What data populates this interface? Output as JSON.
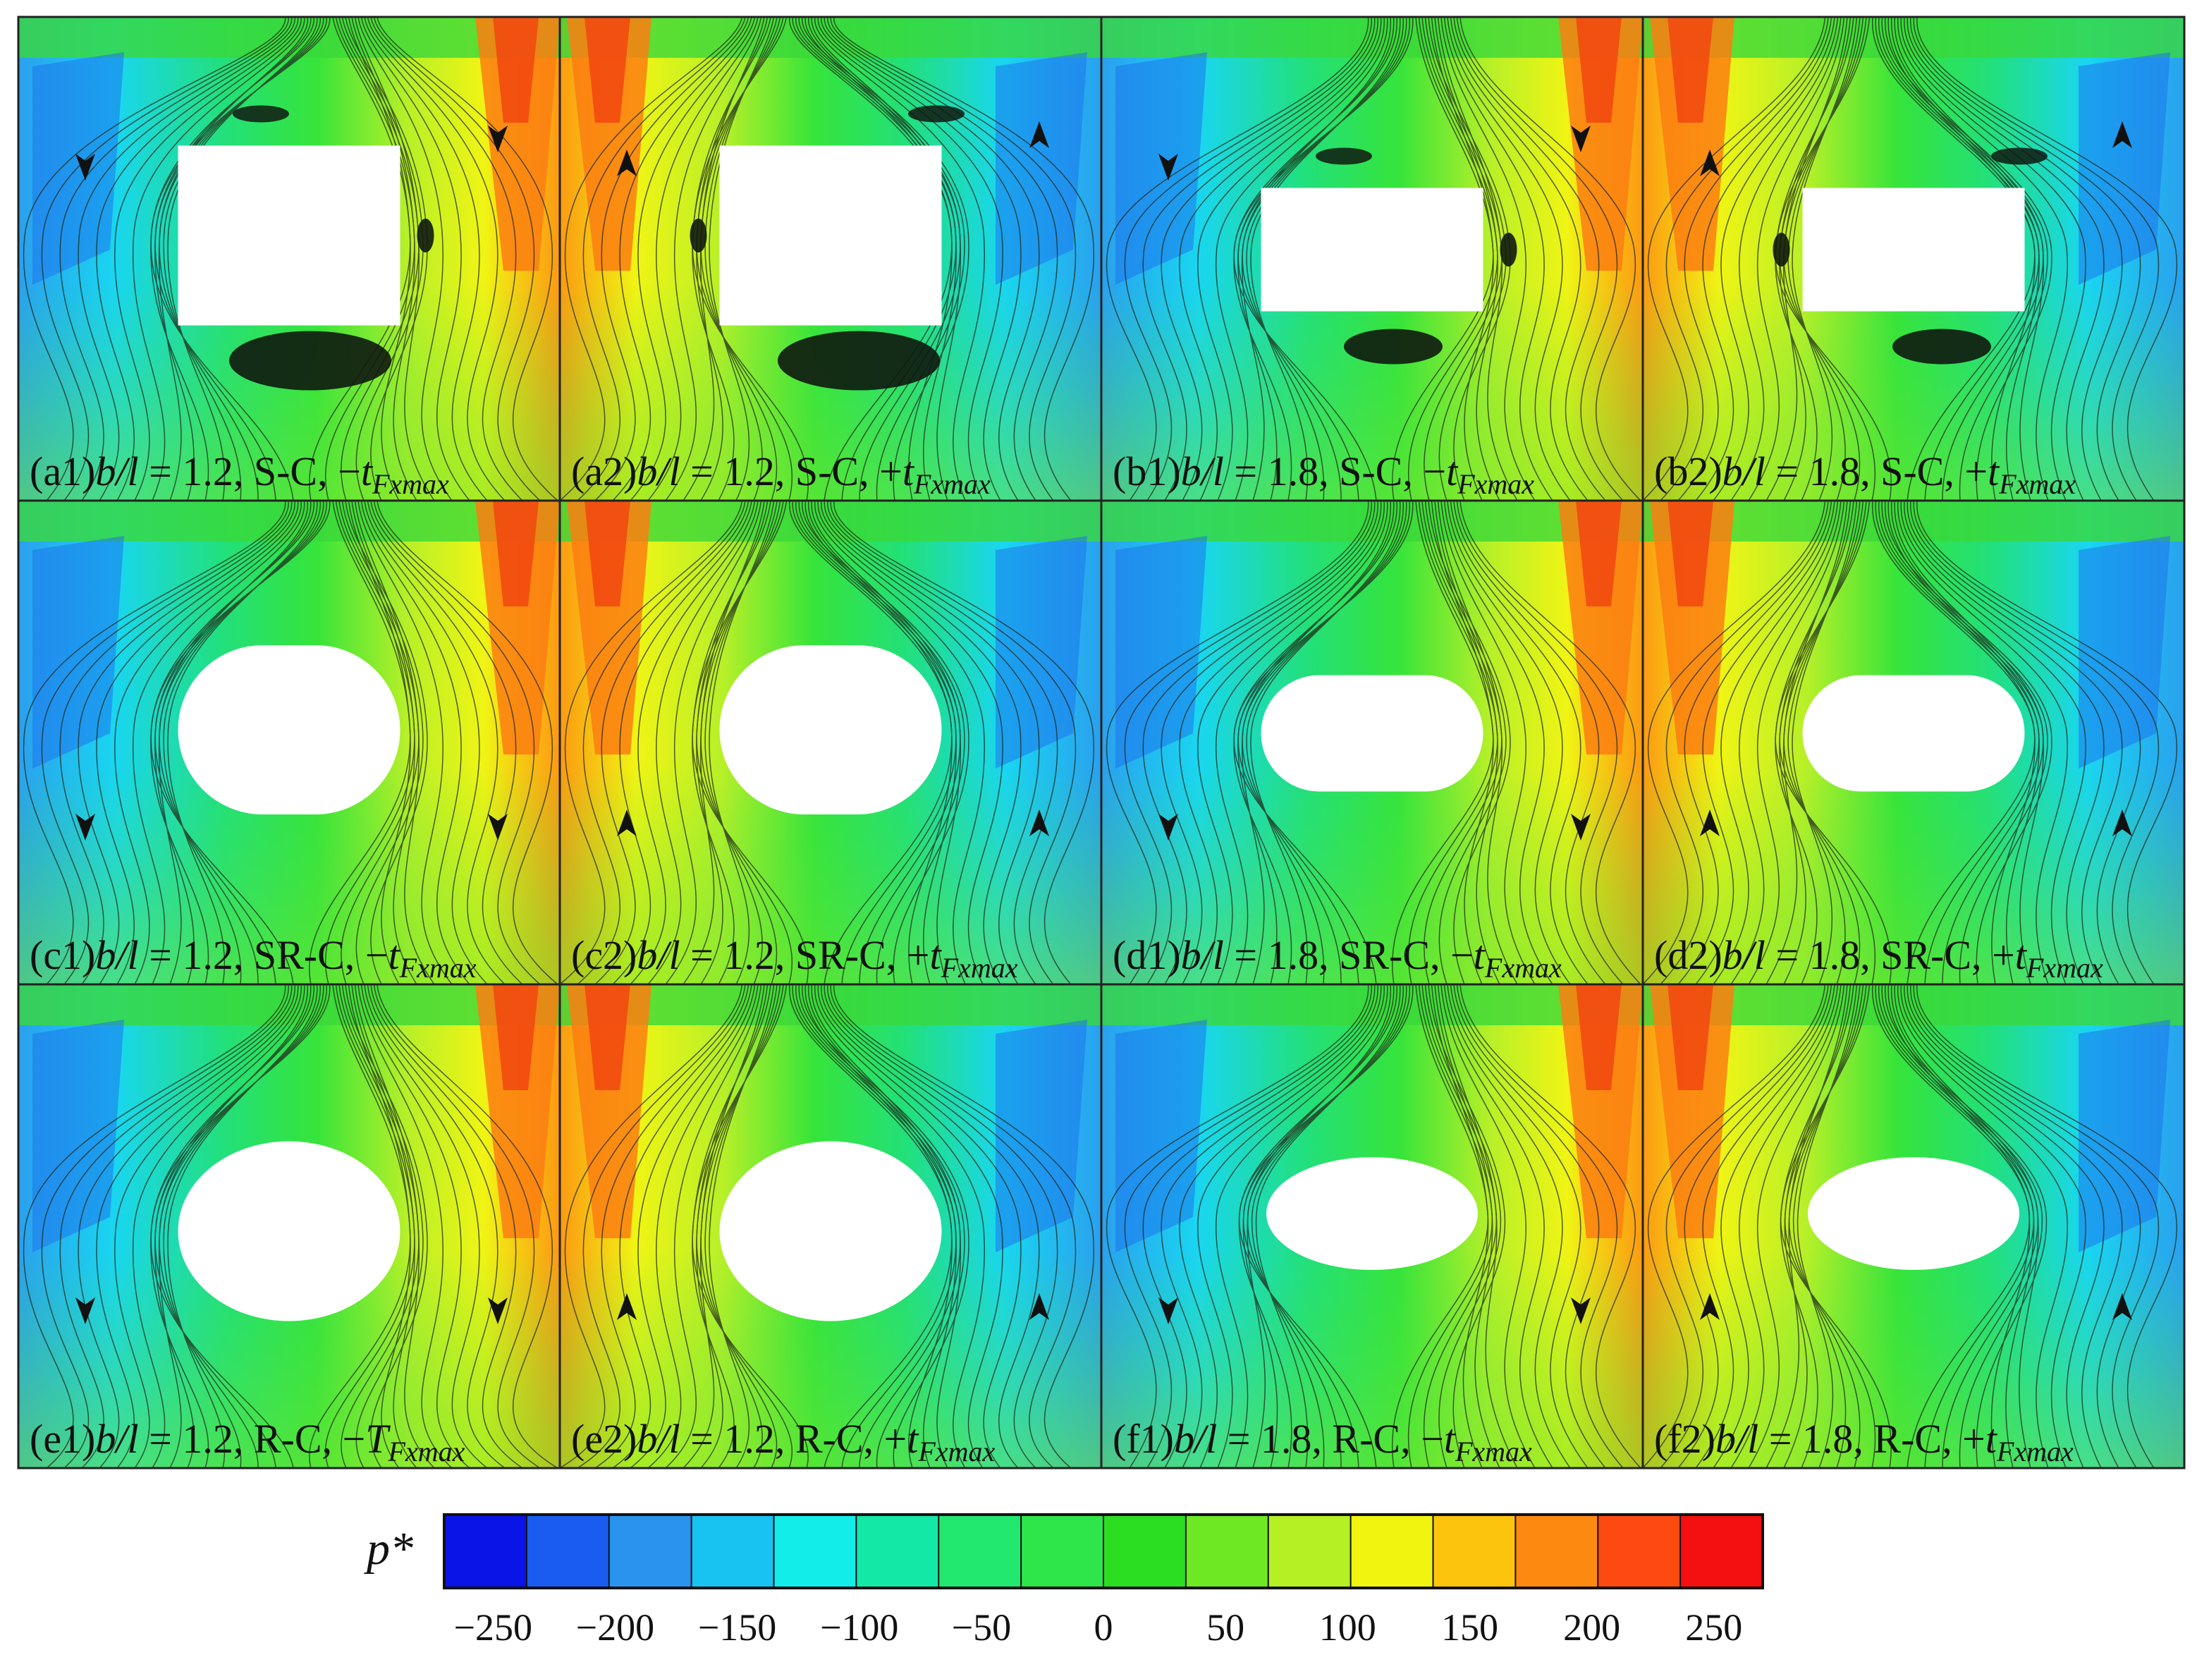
{
  "panels": [
    {
      "id": "a1",
      "tag": "(a1)",
      "ratio": "1.2",
      "config": "S-C",
      "sign": "−",
      "t": "t",
      "sub": "Fxmax",
      "shape": "square",
      "wide": false,
      "theme": "cw",
      "vortex": true
    },
    {
      "id": "a2",
      "tag": "(a2)",
      "ratio": "1.2",
      "config": "S-C",
      "sign": "+",
      "t": "t",
      "sub": "Fxmax",
      "shape": "square",
      "wide": false,
      "theme": "ccw",
      "vortex": true
    },
    {
      "id": "b1",
      "tag": "(b1)",
      "ratio": "1.8",
      "config": "S-C",
      "sign": "−",
      "t": "t",
      "sub": "Fxmax",
      "shape": "square",
      "wide": true,
      "theme": "cw",
      "vortex": true
    },
    {
      "id": "b2",
      "tag": "(b2)",
      "ratio": "1.8",
      "config": "S-C",
      "sign": "+",
      "t": "t",
      "sub": "Fxmax",
      "shape": "square",
      "wide": true,
      "theme": "ccw",
      "vortex": true
    },
    {
      "id": "c1",
      "tag": "(c1)",
      "ratio": "1.2",
      "config": "SR-C",
      "sign": "−",
      "t": "t",
      "sub": "Fxmax",
      "shape": "rounded",
      "wide": false,
      "theme": "cw",
      "vortex": false
    },
    {
      "id": "c2",
      "tag": "(c2)",
      "ratio": "1.2",
      "config": "SR-C",
      "sign": "+",
      "t": "t",
      "sub": "Fxmax",
      "shape": "rounded",
      "wide": false,
      "theme": "ccw",
      "vortex": false
    },
    {
      "id": "d1",
      "tag": "(d1)",
      "ratio": "1.8",
      "config": "SR-C",
      "sign": "−",
      "t": "t",
      "sub": "Fxmax",
      "shape": "rounded",
      "wide": true,
      "theme": "cw",
      "vortex": false
    },
    {
      "id": "d2",
      "tag": "(d2)",
      "ratio": "1.8",
      "config": "SR-C",
      "sign": "+",
      "t": "t",
      "sub": "Fxmax",
      "shape": "rounded",
      "wide": true,
      "theme": "ccw",
      "vortex": false
    },
    {
      "id": "e1",
      "tag": "(e1)",
      "ratio": "1.2",
      "config": "R-C",
      "sign": "−",
      "t": "T",
      "sub": "Fxmax",
      "shape": "ellipse",
      "wide": false,
      "theme": "cw",
      "vortex": false
    },
    {
      "id": "e2",
      "tag": "(e2)",
      "ratio": "1.2",
      "config": "R-C",
      "sign": "+",
      "t": "t",
      "sub": "Fxmax",
      "shape": "ellipse",
      "wide": false,
      "theme": "ccw",
      "vortex": false
    },
    {
      "id": "f1",
      "tag": "(f1)",
      "ratio": "1.8",
      "config": "R-C",
      "sign": "−",
      "t": "t",
      "sub": "Fxmax",
      "shape": "ellipse",
      "wide": true,
      "theme": "cw",
      "vortex": false
    },
    {
      "id": "f2",
      "tag": "(f2)",
      "ratio": "1.8",
      "config": "R-C",
      "sign": "+",
      "t": "t",
      "sub": "Fxmax",
      "shape": "ellipse",
      "wide": true,
      "theme": "ccw",
      "vortex": false
    }
  ],
  "label_parts": {
    "b": "b",
    "slash": "/",
    "l": "l",
    "eq": " = ",
    "comma": ", "
  },
  "colorbar": {
    "title": "p*",
    "ticks": [
      "−250",
      "−200",
      "−150",
      "−100",
      "−50",
      "0",
      "50",
      "100",
      "150",
      "200",
      "250"
    ],
    "colors": [
      "#0a14e6",
      "#1a5cf0",
      "#2a93ee",
      "#18c3f2",
      "#12edea",
      "#14e8a6",
      "#22e870",
      "#2ee64a",
      "#2cde22",
      "#6ee822",
      "#b4f024",
      "#f0f40e",
      "#fcc40c",
      "#fc8a10",
      "#fc4a10",
      "#f41010"
    ]
  }
}
